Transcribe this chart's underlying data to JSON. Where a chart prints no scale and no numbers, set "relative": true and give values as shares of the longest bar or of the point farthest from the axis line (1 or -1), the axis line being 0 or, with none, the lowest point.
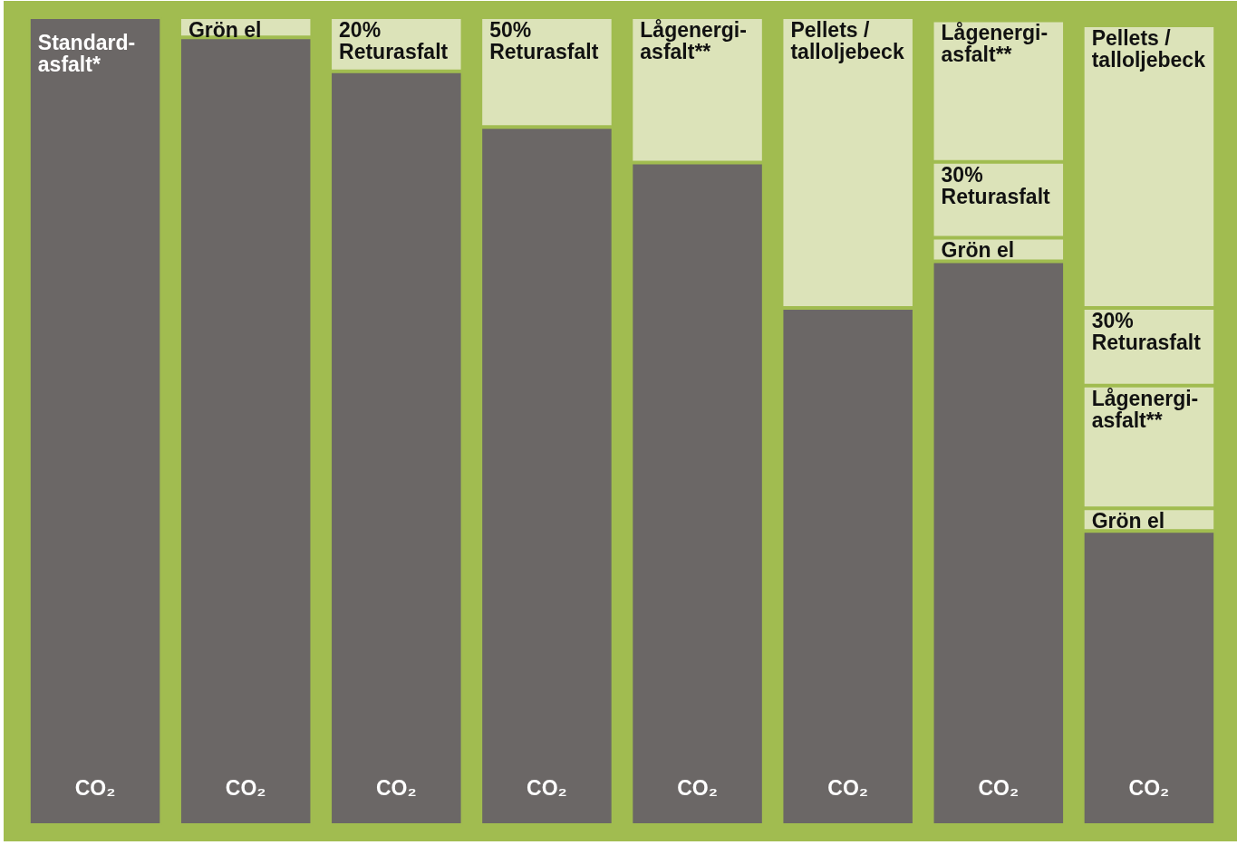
{
  "chart_data": {
    "type": "bar",
    "stacked": true,
    "relative": true,
    "legend": false,
    "categories": [
      null,
      null,
      null,
      null,
      null,
      null,
      null,
      null
    ],
    "annotations": [
      "Standard- asfalt*"
    ],
    "series": [
      {
        "name": "CO₂",
        "color": "#6b6766",
        "values": [
          1,
          0.975,
          0.933,
          0.864,
          0.82,
          0.64,
          0.698,
          0.364
        ]
      },
      {
        "name": "Grön el",
        "color": "#dce3b9",
        "values": [
          null,
          0.025,
          null,
          null,
          null,
          null,
          0.029,
          0.028
        ]
      },
      {
        "name": "20% Returasfalt",
        "color": "#dce3b9",
        "values": [
          null,
          null,
          0.067,
          null,
          null,
          null,
          null,
          null
        ]
      },
      {
        "name": "50% Returasfalt",
        "color": "#dce3b9",
        "values": [
          null,
          null,
          null,
          0.136,
          null,
          null,
          null,
          null
        ]
      },
      {
        "name": "Lågenergi- asfalt**",
        "color": "#dce3b9",
        "values": [
          null,
          null,
          null,
          null,
          0.18,
          null,
          null,
          0.152
        ]
      },
      {
        "name": "30% Returasfalt",
        "color": "#dce3b9",
        "values": [
          null,
          null,
          null,
          null,
          null,
          null,
          0.094,
          0.096
        ]
      },
      {
        "name": "Lågenergi- asfalt**",
        "color": "#dce3b9",
        "values": [
          null,
          null,
          null,
          null,
          null,
          null,
          0.175,
          null
        ]
      },
      {
        "name": "Pellets / talloljebeck",
        "color": "#dce3b9",
        "values": [
          null,
          null,
          null,
          null,
          null,
          0.36,
          null,
          0.35
        ]
      }
    ]
  }
}
